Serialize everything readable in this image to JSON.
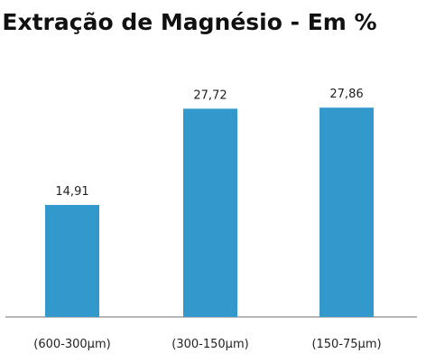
{
  "chart_data": {
    "type": "bar",
    "title": "Extração de Magnésio - Em %",
    "categories": [
      "(600-300µm)",
      "(300-150µm)",
      "(150-75µm)"
    ],
    "values": [
      14.91,
      27.72,
      27.86
    ],
    "data_labels": [
      "14,91",
      "27,72",
      "27,86"
    ],
    "ylim": [
      0,
      30
    ],
    "grid": false,
    "legend": "none",
    "bar_color": "#3399cc",
    "axis_color": "#8c8c8c"
  }
}
